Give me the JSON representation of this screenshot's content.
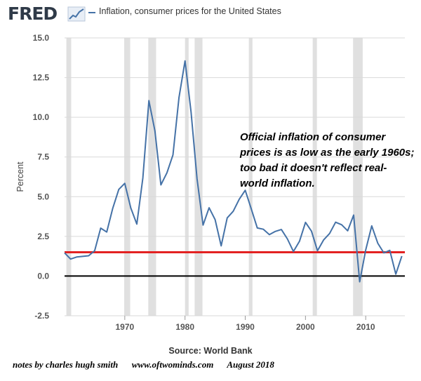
{
  "header": {
    "logo_text": "FRED",
    "legend_label": "Inflation, consumer prices for the United States"
  },
  "colors": {
    "series": "#4572a7",
    "recession": "#e0e0e0",
    "reference_line": "#e32222",
    "zero_line": "#000000",
    "grid": "#d9d9d9"
  },
  "chart_data": {
    "type": "line",
    "title": "Inflation, consumer prices for the United States",
    "xlabel": "",
    "ylabel": "Percent",
    "xlim": [
      1960,
      2016.5
    ],
    "ylim": [
      -2.5,
      15.0
    ],
    "yticks": [
      {
        "value": 15.0,
        "label": "15.0"
      },
      {
        "value": 12.5,
        "label": "12.5"
      },
      {
        "value": 10.0,
        "label": "10.0"
      },
      {
        "value": 7.5,
        "label": "7.5"
      },
      {
        "value": 5.0,
        "label": "5.0"
      },
      {
        "value": 2.5,
        "label": "2.5"
      },
      {
        "value": 0.0,
        "label": "0.0"
      },
      {
        "value": -2.5,
        "label": "-2.5"
      }
    ],
    "xticks": [
      {
        "value": 1970,
        "label": "1970"
      },
      {
        "value": 1980,
        "label": "1980"
      },
      {
        "value": 1990,
        "label": "1990"
      },
      {
        "value": 2000,
        "label": "2000"
      },
      {
        "value": 2010,
        "label": "2010"
      }
    ],
    "recessions": [
      [
        1960.3,
        1961.1
      ],
      [
        1969.9,
        1970.9
      ],
      [
        1973.9,
        1975.2
      ],
      [
        1980.0,
        1980.6
      ],
      [
        1981.6,
        1982.9
      ],
      [
        1990.6,
        1991.2
      ],
      [
        2001.2,
        2001.9
      ],
      [
        2007.9,
        2009.5
      ]
    ],
    "series": [
      {
        "name": "Inflation, consumer prices for the United States",
        "x": [
          1960,
          1961,
          1962,
          1963,
          1964,
          1965,
          1966,
          1967,
          1968,
          1969,
          1970,
          1971,
          1972,
          1973,
          1974,
          1975,
          1976,
          1977,
          1978,
          1979,
          1980,
          1981,
          1982,
          1983,
          1984,
          1985,
          1986,
          1987,
          1988,
          1989,
          1990,
          1991,
          1992,
          1993,
          1994,
          1995,
          1996,
          1997,
          1998,
          1999,
          2000,
          2001,
          2002,
          2003,
          2004,
          2005,
          2006,
          2007,
          2008,
          2009,
          2010,
          2011,
          2012,
          2013,
          2014,
          2015,
          2016
        ],
        "values": [
          1.46,
          1.07,
          1.2,
          1.24,
          1.28,
          1.59,
          3.02,
          2.77,
          4.27,
          5.46,
          5.84,
          4.29,
          3.27,
          6.18,
          11.05,
          9.14,
          5.74,
          6.5,
          7.63,
          11.25,
          13.55,
          10.33,
          6.13,
          3.21,
          4.3,
          3.55,
          1.9,
          3.66,
          4.08,
          4.83,
          5.4,
          4.23,
          3.03,
          2.95,
          2.61,
          2.81,
          2.93,
          2.34,
          1.55,
          2.19,
          3.38,
          2.83,
          1.59,
          2.27,
          2.68,
          3.39,
          3.23,
          2.85,
          3.84,
          -0.36,
          1.64,
          3.16,
          2.07,
          1.46,
          1.62,
          0.12,
          1.26
        ]
      }
    ],
    "reference_lines": [
      {
        "value": 1.5,
        "color": "#e32222",
        "label": ""
      },
      {
        "value": 0.0,
        "color": "#000000",
        "label": ""
      }
    ],
    "annotation": {
      "lines": [
        "Official inflation of consumer",
        "prices is as low as the early 1960s;",
        "too bad it doesn't reflect real-",
        "world inflation."
      ]
    },
    "source": "Source: World Bank"
  },
  "footer": {
    "author": "notes by charles hugh smith",
    "site": "www.oftwominds.com",
    "date": "August 2018"
  }
}
